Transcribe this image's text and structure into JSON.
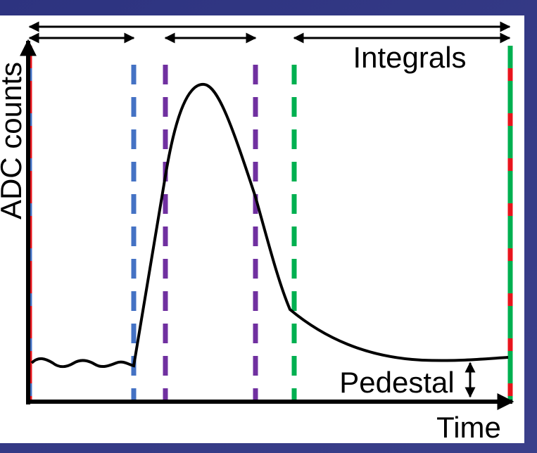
{
  "labels": {
    "y_axis": "ADC counts",
    "integrals": "Integrals",
    "pedestal": "Pedestal",
    "x_axis": "Time"
  }
}
